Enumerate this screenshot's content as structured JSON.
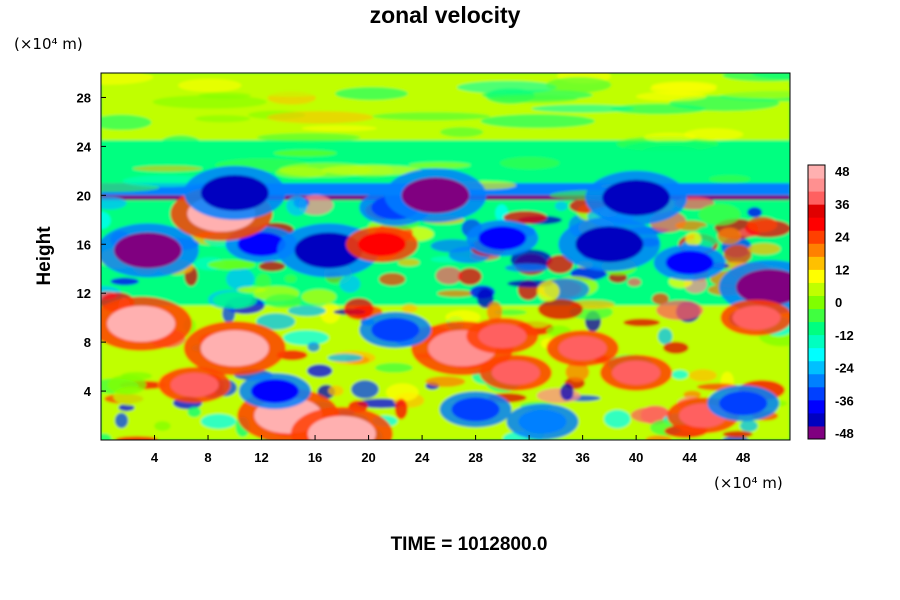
{
  "chart_data": {
    "type": "heatmap",
    "title": "zonal velocity",
    "ylabel": "Height",
    "xunit": "(×10⁴ m)",
    "yunit": "(×10⁴ m)",
    "xlim": [
      0,
      51.5
    ],
    "ylim": [
      0,
      30
    ],
    "xticks": [
      4,
      8,
      12,
      16,
      20,
      24,
      28,
      32,
      36,
      40,
      44,
      48
    ],
    "yticks": [
      4,
      8,
      12,
      16,
      20,
      24,
      28
    ],
    "colorbar": {
      "min": -48,
      "max": 48,
      "ticks": [
        48,
        36,
        24,
        12,
        0,
        -12,
        -24,
        -36,
        -48
      ],
      "colors": [
        "#800080",
        "#0000c0",
        "#0000ff",
        "#0040ff",
        "#0080ff",
        "#00c0ff",
        "#00ffff",
        "#00ffc0",
        "#00ff80",
        "#40ff40",
        "#80ff00",
        "#c0ff00",
        "#ffff00",
        "#ffc000",
        "#ff8000",
        "#ff4000",
        "#ff0000",
        "#e00000",
        "#ff6060",
        "#ff9090",
        "#ffb0b0"
      ]
    },
    "footer": "TIME = 1012800.0",
    "field_features": [
      {
        "x": 3.5,
        "y": 15.5,
        "value": -48
      },
      {
        "x": 12,
        "y": 16,
        "value": -40
      },
      {
        "x": 17,
        "y": 15.5,
        "value": -44
      },
      {
        "x": 22,
        "y": 19,
        "value": -36
      },
      {
        "x": 30,
        "y": 16.5,
        "value": -40
      },
      {
        "x": 38,
        "y": 16,
        "value": -44
      },
      {
        "x": 44,
        "y": 14.5,
        "value": -40
      },
      {
        "x": 50,
        "y": 12.5,
        "value": -48
      },
      {
        "x": 9,
        "y": 18.5,
        "value": 48
      },
      {
        "x": 21,
        "y": 16,
        "value": 30
      },
      {
        "x": 3,
        "y": 9.5,
        "value": 48
      },
      {
        "x": 10,
        "y": 7.5,
        "value": 48
      },
      {
        "x": 7,
        "y": 4.5,
        "value": 36
      },
      {
        "x": 14,
        "y": 2,
        "value": 48
      },
      {
        "x": 18,
        "y": 0.5,
        "value": 48
      },
      {
        "x": 27,
        "y": 7.5,
        "value": 44
      },
      {
        "x": 30,
        "y": 8.5,
        "value": 40
      },
      {
        "x": 31,
        "y": 5.5,
        "value": 36
      },
      {
        "x": 36,
        "y": 7.5,
        "value": 40
      },
      {
        "x": 40,
        "y": 5.5,
        "value": 40
      },
      {
        "x": 45,
        "y": 2,
        "value": 36
      },
      {
        "x": 49,
        "y": 10,
        "value": 36
      },
      {
        "x": 13,
        "y": 4,
        "value": -40
      },
      {
        "x": 28,
        "y": 2.5,
        "value": -36
      },
      {
        "x": 22,
        "y": 9,
        "value": -36
      },
      {
        "x": 33,
        "y": 1.5,
        "value": -30
      },
      {
        "x": 48,
        "y": 3,
        "value": -34
      },
      {
        "x": 25,
        "y": 20,
        "value": -48
      },
      {
        "x": 10,
        "y": 20.2,
        "value": -44
      },
      {
        "x": 40,
        "y": 19.8,
        "value": -44
      }
    ]
  }
}
